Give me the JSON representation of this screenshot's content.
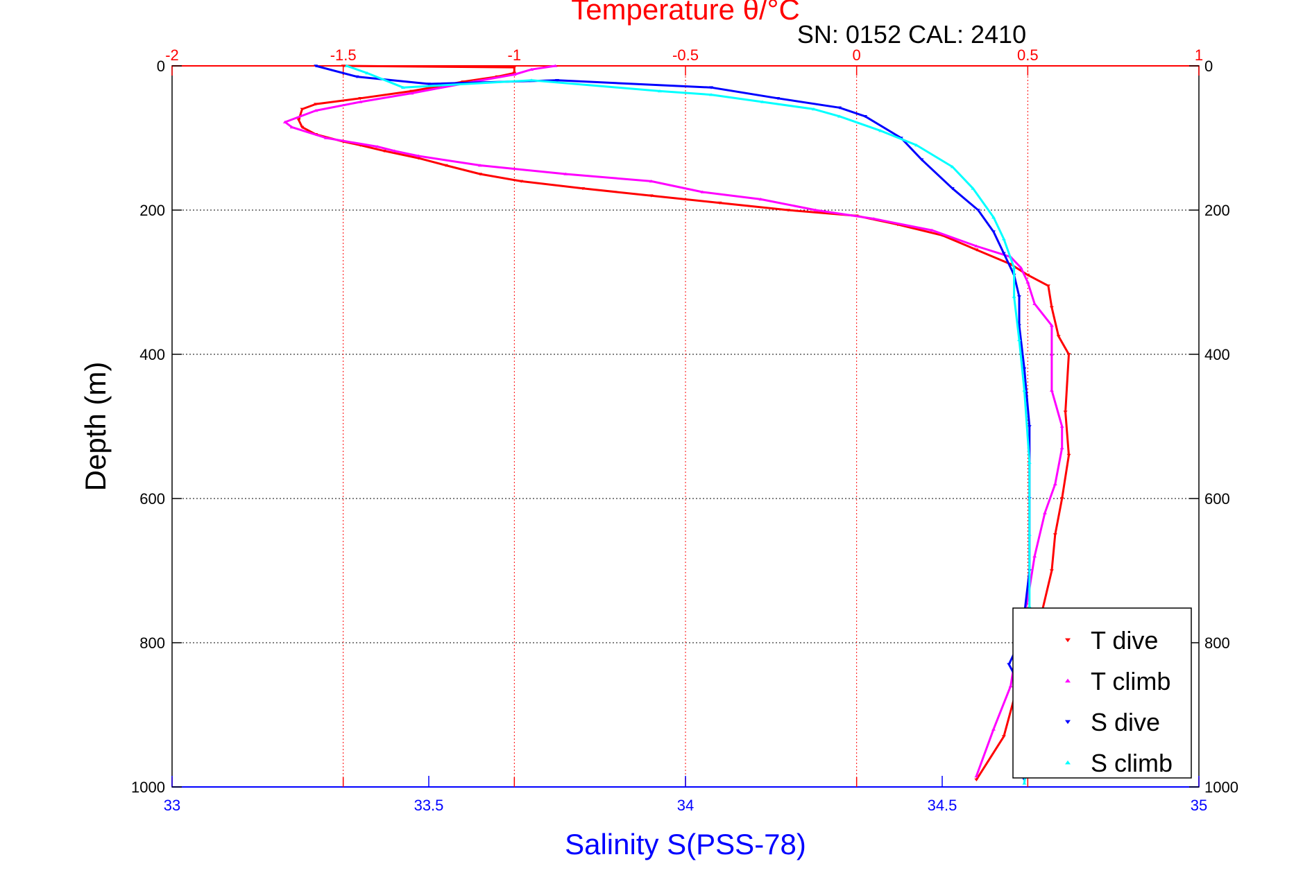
{
  "header": {
    "title": "Temperature θ/°C",
    "subtitle": "SN: 0152  CAL: 2410"
  },
  "colors": {
    "temperature_axis": "#ff0000",
    "salinity_axis": "#0000ff",
    "depth_axis": "#000000",
    "t_dive": "#ff0000",
    "t_climb": "#ff00ff",
    "s_dive": "#0000ff",
    "s_climb": "#00ffff"
  },
  "chart_data": {
    "type": "scatter",
    "title": "Temperature θ/°C",
    "subtitle": "SN: 0152  CAL: 2410",
    "xlabel": "Salinity S(PSS-78)",
    "ylabel": "Depth (m)",
    "x_top_label": "Temperature θ/°C",
    "x_top_lim": [
      -2,
      1
    ],
    "x_top_ticks": [
      -2,
      -1.5,
      -1,
      -0.5,
      0,
      0.5,
      1
    ],
    "x_top_tick_labels": [
      "-2",
      "-1.5",
      "-1",
      "-0.5",
      "0",
      "0.5",
      "1"
    ],
    "x_bottom_lim": [
      33,
      35
    ],
    "x_bottom_ticks": [
      33,
      33.5,
      34,
      34.5,
      35
    ],
    "x_bottom_tick_labels": [
      "33",
      "33.5",
      "34",
      "34.5",
      "35"
    ],
    "y_lim": [
      0,
      1000
    ],
    "y_reversed": true,
    "y_ticks": [
      0,
      200,
      400,
      600,
      800,
      1000
    ],
    "y_tick_labels": [
      "0",
      "200",
      "400",
      "600",
      "800",
      "1000"
    ],
    "grid": true,
    "legend_position": "bottom-right",
    "series": [
      {
        "name": "T dive",
        "axis": "temperature",
        "marker": "triangle-down",
        "points": [
          [
            -1.5,
            0
          ],
          [
            -1.0,
            2
          ],
          [
            -1.0,
            10
          ],
          [
            -1.05,
            15
          ],
          [
            -1.15,
            22
          ],
          [
            -1.3,
            35
          ],
          [
            -1.45,
            45
          ],
          [
            -1.58,
            53
          ],
          [
            -1.62,
            60
          ],
          [
            -1.63,
            75
          ],
          [
            -1.62,
            85
          ],
          [
            -1.58,
            95
          ],
          [
            -1.5,
            105
          ],
          [
            -1.45,
            110
          ],
          [
            -1.38,
            118
          ],
          [
            -1.28,
            128
          ],
          [
            -1.2,
            138
          ],
          [
            -1.1,
            150
          ],
          [
            -0.98,
            160
          ],
          [
            -0.8,
            170
          ],
          [
            -0.6,
            180
          ],
          [
            -0.4,
            190
          ],
          [
            -0.2,
            200
          ],
          [
            0.0,
            208
          ],
          [
            0.12,
            220
          ],
          [
            0.25,
            235
          ],
          [
            0.35,
            255
          ],
          [
            0.45,
            275
          ],
          [
            0.5,
            290
          ],
          [
            0.56,
            305
          ],
          [
            0.57,
            335
          ],
          [
            0.59,
            375
          ],
          [
            0.62,
            400
          ],
          [
            0.61,
            480
          ],
          [
            0.62,
            540
          ],
          [
            0.6,
            600
          ],
          [
            0.58,
            650
          ],
          [
            0.57,
            700
          ],
          [
            0.54,
            760
          ],
          [
            0.5,
            800
          ],
          [
            0.47,
            860
          ],
          [
            0.43,
            930
          ],
          [
            0.35,
            990
          ]
        ]
      },
      {
        "name": "T climb",
        "axis": "temperature",
        "marker": "triangle-up",
        "points": [
          [
            -0.88,
            0
          ],
          [
            -0.95,
            5
          ],
          [
            -1.0,
            12
          ],
          [
            -1.12,
            22
          ],
          [
            -1.3,
            38
          ],
          [
            -1.45,
            50
          ],
          [
            -1.58,
            62
          ],
          [
            -1.67,
            78
          ],
          [
            -1.65,
            85
          ],
          [
            -1.55,
            100
          ],
          [
            -1.4,
            112
          ],
          [
            -1.35,
            118
          ],
          [
            -1.28,
            125
          ],
          [
            -1.1,
            138
          ],
          [
            -0.85,
            150
          ],
          [
            -0.6,
            160
          ],
          [
            -0.45,
            175
          ],
          [
            -0.28,
            185
          ],
          [
            -0.12,
            200
          ],
          [
            0.05,
            212
          ],
          [
            0.22,
            228
          ],
          [
            0.35,
            250
          ],
          [
            0.45,
            265
          ],
          [
            0.48,
            280
          ],
          [
            0.5,
            300
          ],
          [
            0.52,
            330
          ],
          [
            0.57,
            360
          ],
          [
            0.57,
            400
          ],
          [
            0.57,
            450
          ],
          [
            0.6,
            500
          ],
          [
            0.6,
            530
          ],
          [
            0.58,
            580
          ],
          [
            0.55,
            620
          ],
          [
            0.52,
            680
          ],
          [
            0.5,
            740
          ],
          [
            0.47,
            800
          ],
          [
            0.45,
            860
          ],
          [
            0.4,
            920
          ],
          [
            0.35,
            985
          ]
        ]
      },
      {
        "name": "S dive",
        "axis": "salinity",
        "marker": "triangle-down",
        "points": [
          [
            33.28,
            0
          ],
          [
            33.36,
            15
          ],
          [
            33.5,
            25
          ],
          [
            33.75,
            20
          ],
          [
            34.05,
            30
          ],
          [
            34.18,
            45
          ],
          [
            34.3,
            58
          ],
          [
            34.35,
            70
          ],
          [
            34.42,
            100
          ],
          [
            34.46,
            130
          ],
          [
            34.52,
            170
          ],
          [
            34.57,
            200
          ],
          [
            34.6,
            230
          ],
          [
            34.62,
            260
          ],
          [
            34.64,
            290
          ],
          [
            34.65,
            320
          ],
          [
            34.65,
            360
          ],
          [
            34.66,
            420
          ],
          [
            34.67,
            500
          ],
          [
            34.67,
            600
          ],
          [
            34.67,
            700
          ],
          [
            34.66,
            760
          ],
          [
            34.65,
            800
          ],
          [
            34.63,
            830
          ],
          [
            34.66,
            870
          ],
          [
            34.66,
            920
          ],
          [
            34.66,
            990
          ]
        ]
      },
      {
        "name": "S climb",
        "axis": "salinity",
        "marker": "triangle-up",
        "points": [
          [
            33.34,
            0
          ],
          [
            33.38,
            10
          ],
          [
            33.45,
            30
          ],
          [
            33.7,
            20
          ],
          [
            33.95,
            35
          ],
          [
            34.05,
            40
          ],
          [
            34.15,
            50
          ],
          [
            34.25,
            60
          ],
          [
            34.3,
            70
          ],
          [
            34.38,
            90
          ],
          [
            34.45,
            110
          ],
          [
            34.52,
            140
          ],
          [
            34.56,
            170
          ],
          [
            34.6,
            210
          ],
          [
            34.62,
            240
          ],
          [
            34.64,
            280
          ],
          [
            34.64,
            320
          ],
          [
            34.65,
            380
          ],
          [
            34.66,
            450
          ],
          [
            34.67,
            550
          ],
          [
            34.67,
            650
          ],
          [
            34.67,
            750
          ],
          [
            34.67,
            850
          ],
          [
            34.67,
            930
          ],
          [
            34.66,
            995
          ]
        ]
      }
    ]
  }
}
